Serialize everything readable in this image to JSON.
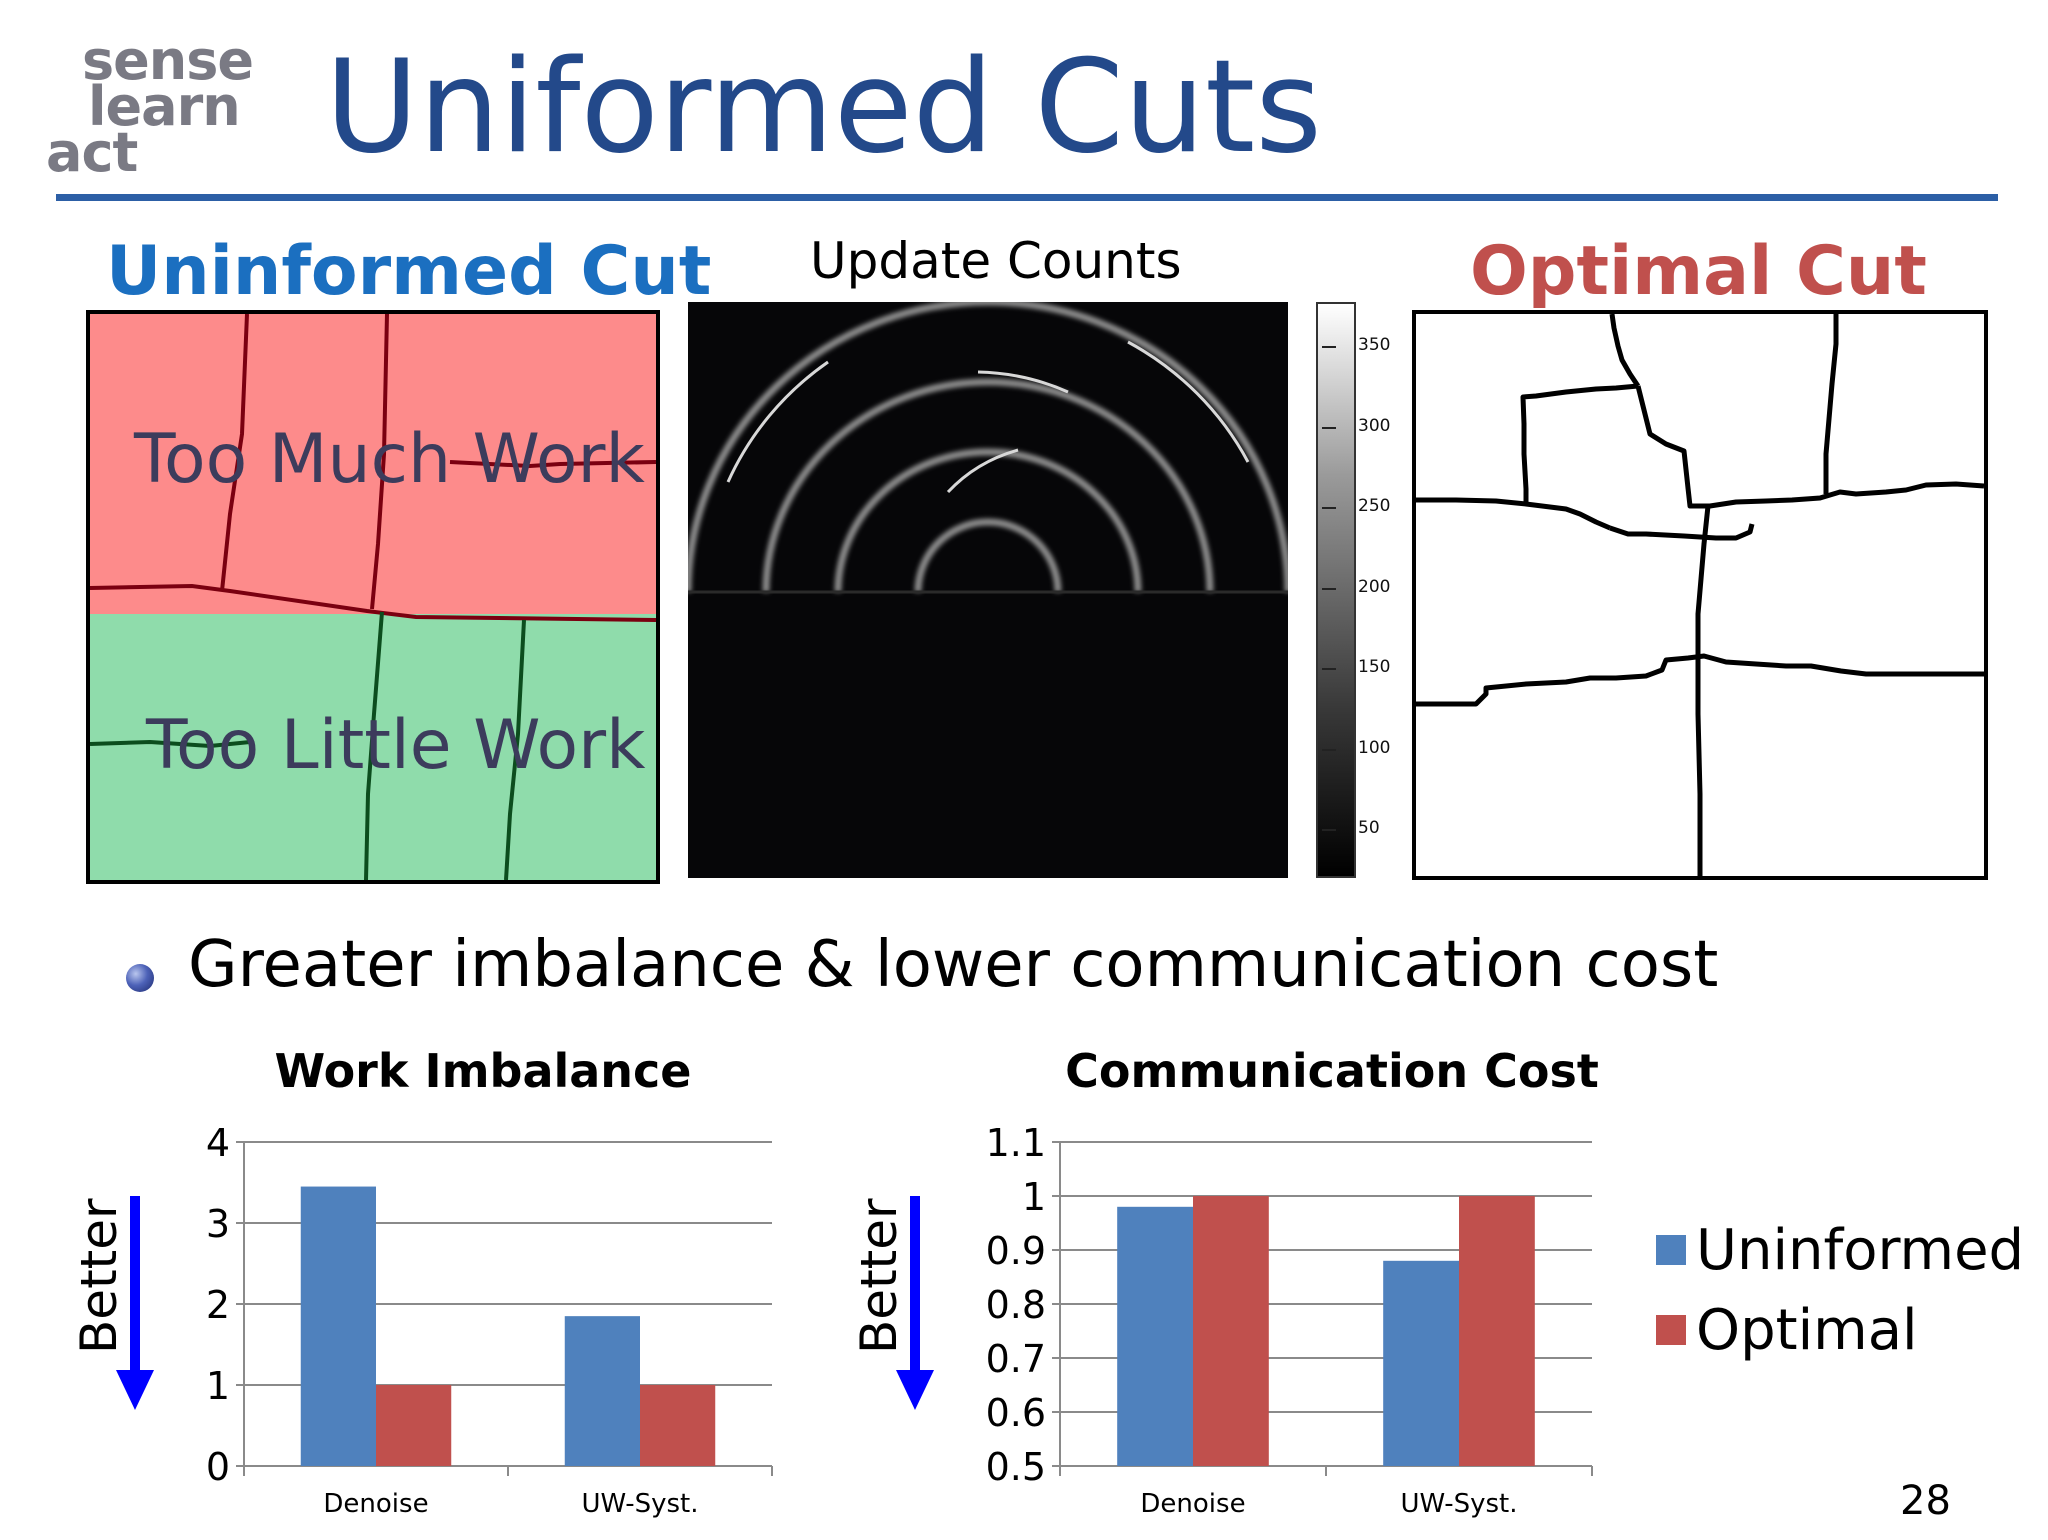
{
  "logo": {
    "lines": [
      "sense",
      "learn",
      "act"
    ]
  },
  "title": "Uniformed Cuts",
  "panels": {
    "uninformed": {
      "heading": "Uninformed Cut",
      "top_label": "Too Much Work",
      "bottom_label": "Too Little Work",
      "colors": {
        "top": "#fd8b8b",
        "bottom": "#8fdcab",
        "top_lines": "#7a0010",
        "bottom_lines": "#0c4d1e"
      }
    },
    "update_counts": {
      "heading": "Update Counts",
      "colorbar_ticks": [
        "350",
        "300",
        "250",
        "200",
        "150",
        "100",
        "50"
      ]
    },
    "optimal": {
      "heading": "Optimal Cut"
    }
  },
  "bullet": "Greater imbalance & lower communication cost",
  "chart_data": [
    {
      "type": "bar",
      "title": "Work Imbalance",
      "categories": [
        "Denoise",
        "UW-Syst."
      ],
      "series": [
        {
          "name": "Uninformed",
          "values": [
            3.45,
            1.85
          ],
          "color": "#4f81bd"
        },
        {
          "name": "Optimal",
          "values": [
            1.0,
            1.0
          ],
          "color": "#c0504d"
        }
      ],
      "yticks": [
        "0",
        "1",
        "2",
        "3",
        "4"
      ],
      "ylim": [
        0,
        4
      ],
      "annotation": "Better",
      "grid": true
    },
    {
      "type": "bar",
      "title": "Communication Cost",
      "categories": [
        "Denoise",
        "UW-Syst."
      ],
      "series": [
        {
          "name": "Uninformed",
          "values": [
            0.98,
            0.88
          ],
          "color": "#4f81bd"
        },
        {
          "name": "Optimal",
          "values": [
            1.0,
            1.0
          ],
          "color": "#c0504d"
        }
      ],
      "yticks": [
        "0.5",
        "0.6",
        "0.7",
        "0.8",
        "0.9",
        "1",
        "1.1"
      ],
      "ylim": [
        0.5,
        1.1
      ],
      "annotation": "Better",
      "grid": true,
      "legend": "right"
    }
  ],
  "legend": [
    "Uninformed",
    "Optimal"
  ],
  "page_number": "28"
}
